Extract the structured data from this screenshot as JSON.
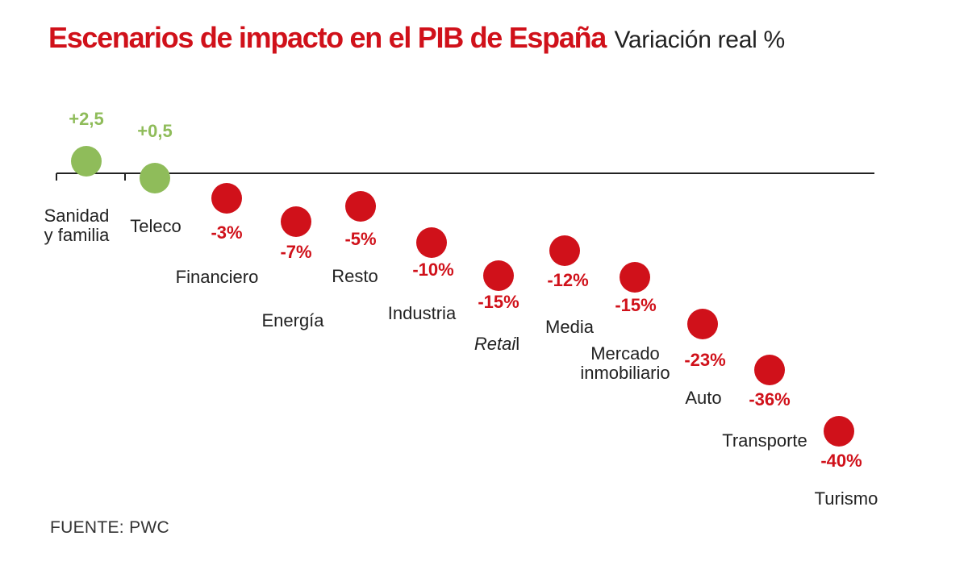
{
  "header": {
    "title": "Escenarios de impacto en el PIB de España",
    "subtitle": "Variación real %"
  },
  "source": "FUENTE: PWC",
  "colors": {
    "positive": "#8fbc5a",
    "negative": "#d0111a",
    "axis": "#222222",
    "text": "#222222"
  },
  "chart_data": {
    "type": "scatter",
    "title": "Escenarios de impacto en el PIB de España",
    "subtitle": "Variación real %",
    "xlabel": "",
    "ylabel": "",
    "ylim": [
      -40,
      2.5
    ],
    "categories": [
      "Sanidad y familia",
      "Teleco",
      "Financiero",
      "Energía",
      "Resto",
      "Industria",
      "Retail",
      "Media",
      "Mercado inmobiliario",
      "Auto",
      "Transporte",
      "Turismo"
    ],
    "points": [
      {
        "label_lines": [
          "Sanidad",
          "y familia"
        ],
        "value": 2.5,
        "value_label": "+2,5"
      },
      {
        "label_lines": [
          "Teleco"
        ],
        "value": 0.5,
        "value_label": "+0,5"
      },
      {
        "label_lines": [
          "Financiero"
        ],
        "value": -3,
        "value_label": "-3%"
      },
      {
        "label_lines": [
          "Energía"
        ],
        "value": -7,
        "value_label": "-7%"
      },
      {
        "label_lines": [
          "Resto"
        ],
        "value": -5,
        "value_label": "-5%"
      },
      {
        "label_lines": [
          "Industria"
        ],
        "value": -10,
        "value_label": "-10%"
      },
      {
        "label_lines": [
          "Retail"
        ],
        "value": -15,
        "value_label": "-15%",
        "italic_part": "Retai"
      },
      {
        "label_lines": [
          "Media"
        ],
        "value": -12,
        "value_label": "-12%"
      },
      {
        "label_lines": [
          "Mercado",
          "inmobiliario"
        ],
        "value": -15,
        "value_label": "-15%"
      },
      {
        "label_lines": [
          "Auto"
        ],
        "value": -23,
        "value_label": "-23%"
      },
      {
        "label_lines": [
          "Transporte"
        ],
        "value": -36,
        "value_label": "-36%"
      },
      {
        "label_lines": [
          "Turismo"
        ],
        "value": -40,
        "value_label": "-40%"
      }
    ]
  }
}
